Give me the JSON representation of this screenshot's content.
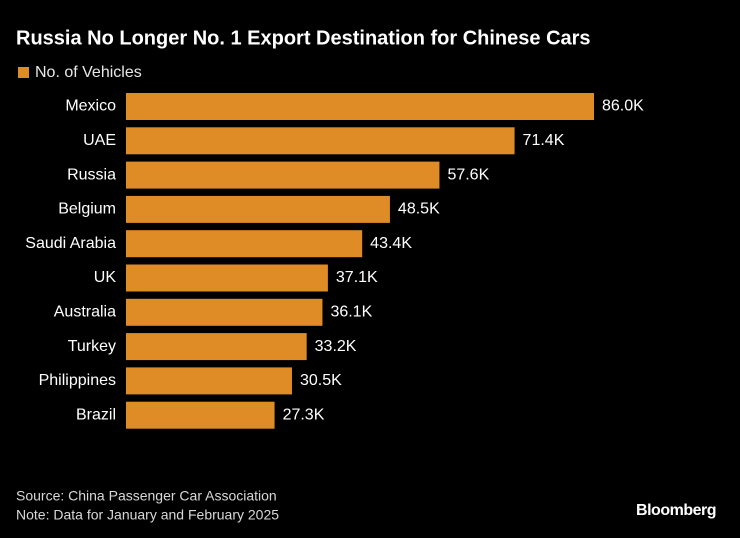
{
  "chart_data": {
    "type": "bar",
    "orientation": "horizontal",
    "title": "Russia No Longer No. 1 Export Destination for Chinese Cars",
    "categories": [
      "Mexico",
      "UAE",
      "Russia",
      "Belgium",
      "Saudi Arabia",
      "UK",
      "Australia",
      "Turkey",
      "Philippines",
      "Brazil"
    ],
    "series": [
      {
        "name": "No. of Vehicles",
        "color": "#e08c26",
        "values": [
          86000,
          71400,
          57600,
          48500,
          43400,
          37100,
          36100,
          33200,
          30500,
          27300
        ],
        "value_labels": [
          "86.0K",
          "71.4K",
          "57.6K",
          "48.5K",
          "43.4K",
          "37.1K",
          "36.1K",
          "33.2K",
          "30.5K",
          "27.3K"
        ]
      }
    ],
    "source": "Source: China Passenger Car Association",
    "note": "Note: Data for January and February 2025",
    "logo": "Bloomberg"
  }
}
